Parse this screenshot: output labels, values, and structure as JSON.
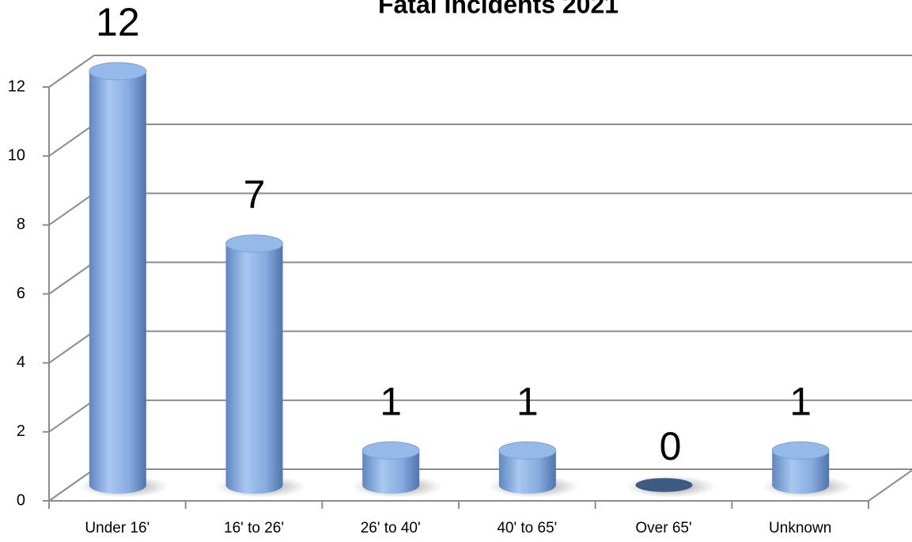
{
  "chart_data": {
    "type": "bar",
    "title": "Fatal Incidents 2021",
    "categories": [
      "Under 16'",
      "16' to 26'",
      "26' to 40'",
      "40' to 65'",
      "Over 65'",
      "Unknown"
    ],
    "values": [
      12,
      7,
      1,
      1,
      0,
      1
    ],
    "color": "#8db3e2",
    "ylim": [
      0,
      12
    ],
    "yticks": [
      0,
      2,
      4,
      6,
      8,
      10,
      12
    ],
    "grid": true
  }
}
